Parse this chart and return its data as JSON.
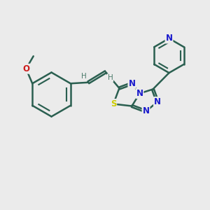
{
  "background_color": "#ebebeb",
  "bond_color": "#2a5f50",
  "N_color": "#1a1acc",
  "O_color": "#cc1a1a",
  "S_color": "#cccc00",
  "H_color": "#4a7a6a",
  "lw": 1.8,
  "dbo": 0.055,
  "fs": 8.5,
  "xlim": [
    0,
    10
  ],
  "ylim": [
    0,
    10
  ]
}
